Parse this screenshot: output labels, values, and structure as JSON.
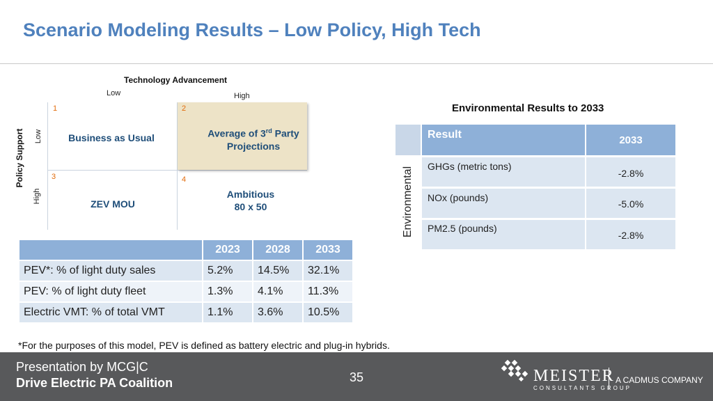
{
  "title": "Scenario Modeling Results – Low Policy, High Tech",
  "matrix": {
    "x_axis_title": "Technology Advancement",
    "x_low": "Low",
    "x_high": "High",
    "y_axis_title": "Policy Support",
    "y_low": "Low",
    "y_high": "High",
    "quadrants": [
      {
        "number": "1",
        "label_line1": "Business as Usual",
        "label_line2": ""
      },
      {
        "number": "2",
        "label_line1_pre": "Average of 3",
        "label_line1_sup": "rd",
        "label_line1_post": " Party",
        "label_line2": "Projections"
      },
      {
        "number": "3",
        "label_line1": "ZEV MOU",
        "label_line2": ""
      },
      {
        "number": "4",
        "label_line1": "Ambitious",
        "label_line2": "80 x 50"
      }
    ],
    "highlight_color": "#ede3c7"
  },
  "pev_table": {
    "headers": [
      "",
      "2023",
      "2028",
      "2033"
    ],
    "rows": [
      [
        "PEV*:   % of light duty sales",
        "5.2%",
        "14.5%",
        "32.1%"
      ],
      [
        "PEV:     % of light duty fleet",
        "1.3%",
        "4.1%",
        "11.3%"
      ],
      [
        "Electric VMT: % of total VMT",
        "1.1%",
        "3.6%",
        "10.5%"
      ]
    ]
  },
  "env_table": {
    "title": "Environmental Results to 2033",
    "side_label": "Environmental",
    "header_result": "Result",
    "header_year": "2033",
    "rows": [
      {
        "label": "GHGs (metric tons)",
        "value": "-2.8%"
      },
      {
        "label": "NOx (pounds)",
        "value": "-5.0%"
      },
      {
        "label": "PM2.5 (pounds)",
        "value": "-2.8%"
      }
    ]
  },
  "footnote": "*For the purposes of this model, PEV is defined as battery electric and plug-in hybrids.",
  "footer": {
    "line1": "Presentation by MCG|C",
    "line2": "Drive Electric PA Coalition",
    "page_number": "35",
    "logo_name": "MEISTER",
    "logo_sub": "CONSULTANTS GROUP",
    "logo_tag": "A CADMUS COMPANY"
  },
  "colors": {
    "title": "#4f81bd",
    "table_header": "#8eb0d8",
    "table_cell": "#dce6f1",
    "quad_label": "#1f4e79",
    "quad_number": "#e26b0a",
    "footer_bg": "#58595b"
  }
}
